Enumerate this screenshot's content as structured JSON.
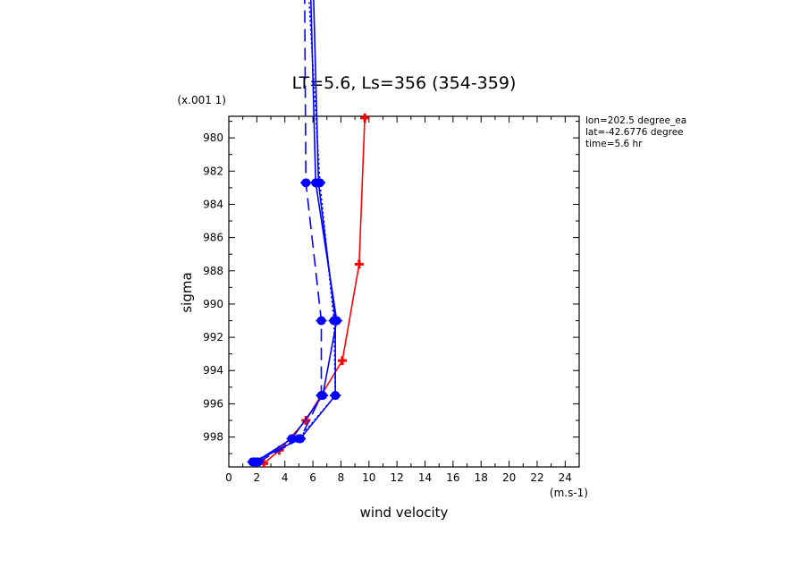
{
  "chart_data": {
    "type": "line",
    "title": "LT=5.6, Ls=356 (354-359)",
    "xlabel": "wind velocity",
    "ylabel": "sigma",
    "x_unit_label": "(m.s-1)",
    "y_unit_label": "(x.001 1)",
    "xlim": [
      0,
      25
    ],
    "ylim": [
      999.8,
      978.7
    ],
    "x_ticks": [
      0,
      2,
      4,
      6,
      8,
      10,
      12,
      14,
      16,
      18,
      20,
      22,
      24
    ],
    "x_tick_labels": [
      "0",
      "2",
      "4",
      "6",
      "8",
      "10",
      "12",
      "14",
      "16",
      "18",
      "20",
      "22",
      "24"
    ],
    "y_ticks": [
      980,
      982,
      984,
      986,
      988,
      990,
      992,
      994,
      996,
      998
    ],
    "y_tick_labels": [
      "980",
      "982",
      "984",
      "986",
      "988",
      "990",
      "992",
      "994",
      "996",
      "998"
    ],
    "grid": false,
    "legend": "none",
    "info_lines": [
      "lon=202.5 degree_ea",
      "lat=-42.6776 degree",
      "time=5.6 hr"
    ],
    "series": [
      {
        "color": "#ff0000",
        "style": "solid",
        "marker": "plus",
        "points": [
          [
            2.5,
            999.6
          ],
          [
            3.6,
            998.8
          ],
          [
            5.5,
            997.0
          ],
          [
            8.1,
            993.4
          ],
          [
            9.3,
            987.6
          ],
          [
            9.7,
            978.8
          ]
        ]
      },
      {
        "color": "#0000ff",
        "style": "solid",
        "marker": "circle",
        "points": [
          [
            1.9,
            999.5
          ],
          [
            4.5,
            998.1
          ],
          [
            6.7,
            995.5
          ],
          [
            7.7,
            991.0
          ],
          [
            6.2,
            982.7
          ],
          [
            5.8,
            970.0
          ]
        ]
      },
      {
        "color": "#0000ff",
        "style": "dotted",
        "marker": "circle",
        "points": [
          [
            1.7,
            999.5
          ],
          [
            5.0,
            998.1
          ],
          [
            7.6,
            995.5
          ],
          [
            7.5,
            991.0
          ],
          [
            6.5,
            982.7
          ],
          [
            5.6,
            970.0
          ]
        ]
      },
      {
        "color": "#0000ff",
        "style": "dashed",
        "marker": "circle",
        "points": [
          [
            2.1,
            999.5
          ],
          [
            5.1,
            998.1
          ],
          [
            6.6,
            995.5
          ],
          [
            6.6,
            991.0
          ],
          [
            5.5,
            982.7
          ],
          [
            5.4,
            970.0
          ]
        ]
      },
      {
        "color": "#0000ff",
        "style": "solid",
        "marker": "circle",
        "points": [
          [
            1.8,
            999.5
          ],
          [
            5.1,
            998.1
          ],
          [
            7.6,
            995.5
          ],
          [
            7.6,
            991.0
          ],
          [
            6.4,
            982.7
          ],
          [
            6.0,
            970.0
          ]
        ]
      }
    ]
  }
}
